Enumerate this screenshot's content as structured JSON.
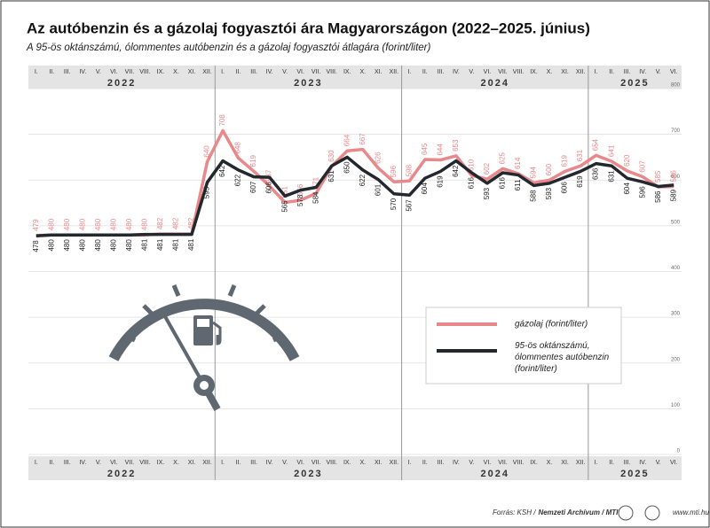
{
  "chart_data": {
    "type": "line",
    "title": "Az autóbenzin és a gázolaj fogyasztói ára Magyarországon (2022–2025. június)",
    "subtitle": "A 95-ös oktánszámú, ólommentes autóbenzin és a gázolaj fogyasztói átlagára (forint/liter)",
    "categories": [
      "I.",
      "II.",
      "III.",
      "IV.",
      "V.",
      "VI.",
      "VII.",
      "VIII.",
      "IX.",
      "X.",
      "XI.",
      "XII.",
      "I.",
      "II.",
      "III.",
      "IV.",
      "V.",
      "VI.",
      "VII.",
      "VIII.",
      "IX.",
      "X.",
      "XI.",
      "XII.",
      "I.",
      "II.",
      "III.",
      "IV.",
      "V.",
      "VI.",
      "VII.",
      "VIII.",
      "IX.",
      "X.",
      "XI.",
      "XII.",
      "I.",
      "II.",
      "III.",
      "IV.",
      "V.",
      "VI."
    ],
    "years": [
      "2022",
      "2023",
      "2024",
      "2025"
    ],
    "series": [
      {
        "name": "gázolaj (forint/liter)",
        "color": "#e8888a",
        "values": [
          479,
          480,
          480,
          480,
          480,
          480,
          480,
          480,
          482,
          482,
          482,
          640,
          708,
          648,
          619,
          587,
          551,
          556,
          571,
          630,
          664,
          667,
          626,
          596,
          598,
          645,
          644,
          653,
          610,
          602,
          625,
          614,
          594,
          600,
          619,
          631,
          654,
          641,
          620,
          607,
          585,
          586
        ]
      },
      {
        "name": "95-ös oktánszámú, ólommentes autóbenzin (forint/liter)",
        "color": "#22282e",
        "values": [
          478,
          480,
          480,
          480,
          480,
          480,
          480,
          481,
          481,
          481,
          481,
          595,
          642,
          622,
          607,
          606,
          565,
          578,
          584,
          631,
          650,
          622,
          601,
          570,
          567,
          604,
          619,
          642,
          616,
          593,
          616,
          611,
          588,
          593,
          606,
          619,
          636,
          631,
          604,
          596,
          586,
          589
        ]
      }
    ],
    "ylim": [
      0,
      800
    ],
    "yticks": [
      0,
      100,
      200,
      300,
      400,
      500,
      600,
      700,
      800
    ],
    "grid": true,
    "source_prefix": "Forrás: KSH /",
    "source_bold": "Nemzeti Archívum / MTI",
    "website": "www.mti.hu"
  }
}
